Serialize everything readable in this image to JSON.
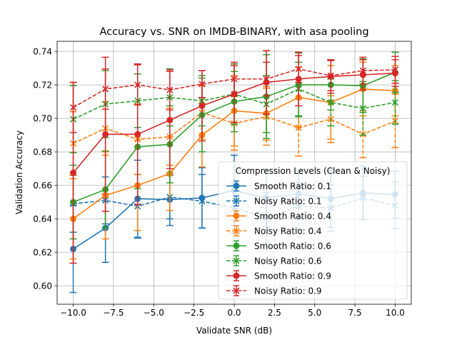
{
  "chart_data": {
    "type": "line",
    "title": "Accuracy vs. SNR on IMDB-BINARY, with asa pooling",
    "xlabel": "Validate SNR (dB)",
    "ylabel": "Validation Accuracy",
    "xlim": [
      -11,
      11
    ],
    "ylim": [
      0.589,
      0.746
    ],
    "xticks": [
      -10.0,
      -7.5,
      -5.0,
      -2.5,
      0.0,
      2.5,
      5.0,
      7.5,
      10.0
    ],
    "xtick_labels": [
      "−10.0",
      "−7.5",
      "−5.0",
      "−2.5",
      "0.0",
      "2.5",
      "5.0",
      "7.5",
      "10.0"
    ],
    "yticks": [
      0.6,
      0.62,
      0.64,
      0.66,
      0.68,
      0.7,
      0.72,
      0.74
    ],
    "ytick_labels": [
      "0.60",
      "0.62",
      "0.64",
      "0.66",
      "0.68",
      "0.70",
      "0.72",
      "0.74"
    ],
    "grid": true,
    "legend_title": "Compression Levels (Clean & Noisy)",
    "legend_position": "lower-right",
    "x": [
      -10,
      -8,
      -6,
      -4,
      -2,
      0,
      2,
      4,
      6,
      8,
      10
    ],
    "series": [
      {
        "name": "Smooth Ratio: 0.1",
        "color": "#1f77b4",
        "style": "solid",
        "marker": "circle",
        "values": [
          0.622,
          0.6345,
          0.652,
          0.6515,
          0.6525,
          0.657,
          0.6525,
          0.655,
          0.652,
          0.6555,
          0.6545
        ],
        "errors": [
          0.026,
          0.0205,
          0.023,
          0.0155,
          0.018,
          0.021,
          0.017,
          0.014,
          0.017,
          0.016,
          0.014
        ]
      },
      {
        "name": "Noisy Ratio: 0.1",
        "color": "#1f77b4",
        "style": "dashed",
        "marker": "x",
        "values": [
          0.649,
          0.651,
          0.6475,
          0.653,
          0.6505,
          0.6465,
          0.6405,
          0.6475,
          0.6465,
          0.6525,
          0.648
        ],
        "errors": [
          0.017,
          0.014,
          0.019,
          0.013,
          0.016,
          0.015,
          0.015,
          0.014,
          0.014,
          0.013,
          0.014
        ]
      },
      {
        "name": "Smooth Ratio: 0.4",
        "color": "#ff7f0e",
        "style": "solid",
        "marker": "circle",
        "values": [
          0.64,
          0.654,
          0.66,
          0.667,
          0.69,
          0.7045,
          0.703,
          0.7125,
          0.7095,
          0.7175,
          0.7165
        ],
        "errors": [
          0.024,
          0.026,
          0.027,
          0.022,
          0.019,
          0.021,
          0.016,
          0.018,
          0.022,
          0.016,
          0.015
        ]
      },
      {
        "name": "Noisy Ratio: 0.4",
        "color": "#ff7f0e",
        "style": "dashed",
        "marker": "x",
        "values": [
          0.685,
          0.694,
          0.6875,
          0.689,
          0.7035,
          0.697,
          0.701,
          0.6945,
          0.6995,
          0.6905,
          0.6985
        ],
        "errors": [
          0.019,
          0.016,
          0.021,
          0.017,
          0.016,
          0.016,
          0.017,
          0.017,
          0.014,
          0.014,
          0.016
        ]
      },
      {
        "name": "Smooth Ratio: 0.6",
        "color": "#2ca02c",
        "style": "solid",
        "marker": "circle",
        "values": [
          0.65,
          0.6575,
          0.683,
          0.6845,
          0.702,
          0.71,
          0.713,
          0.72,
          0.72,
          0.7195,
          0.7275
        ],
        "errors": [
          0.022,
          0.023,
          0.025,
          0.023,
          0.022,
          0.018,
          0.025,
          0.019,
          0.015,
          0.016,
          0.012
        ]
      },
      {
        "name": "Noisy Ratio: 0.6",
        "color": "#2ca02c",
        "style": "dashed",
        "marker": "x",
        "values": [
          0.6995,
          0.7085,
          0.7105,
          0.7125,
          0.7105,
          0.7145,
          0.7085,
          0.7175,
          0.7095,
          0.706,
          0.7095
        ],
        "errors": [
          0.02,
          0.02,
          0.016,
          0.017,
          0.015,
          0.018,
          0.017,
          0.016,
          0.014,
          0.016,
          0.013
        ]
      },
      {
        "name": "Smooth Ratio: 0.9",
        "color": "#d62728",
        "style": "solid",
        "marker": "circle",
        "values": [
          0.6675,
          0.6905,
          0.6905,
          0.699,
          0.7075,
          0.7145,
          0.7215,
          0.7235,
          0.725,
          0.726,
          0.727
        ],
        "errors": [
          0.054,
          0.046,
          0.042,
          0.029,
          0.021,
          0.017,
          0.019,
          0.016,
          0.01,
          0.009,
          0.008
        ]
      },
      {
        "name": "Noisy Ratio: 0.9",
        "color": "#d62728",
        "style": "dashed",
        "marker": "x",
        "values": [
          0.7065,
          0.7175,
          0.72,
          0.717,
          0.7205,
          0.7235,
          0.7235,
          0.7295,
          0.7255,
          0.7285,
          0.729
        ],
        "errors": [
          0.015,
          0.012,
          0.012,
          0.012,
          0.008,
          0.01,
          0.01,
          0.008,
          0.009,
          0.008,
          0.008
        ]
      }
    ]
  }
}
